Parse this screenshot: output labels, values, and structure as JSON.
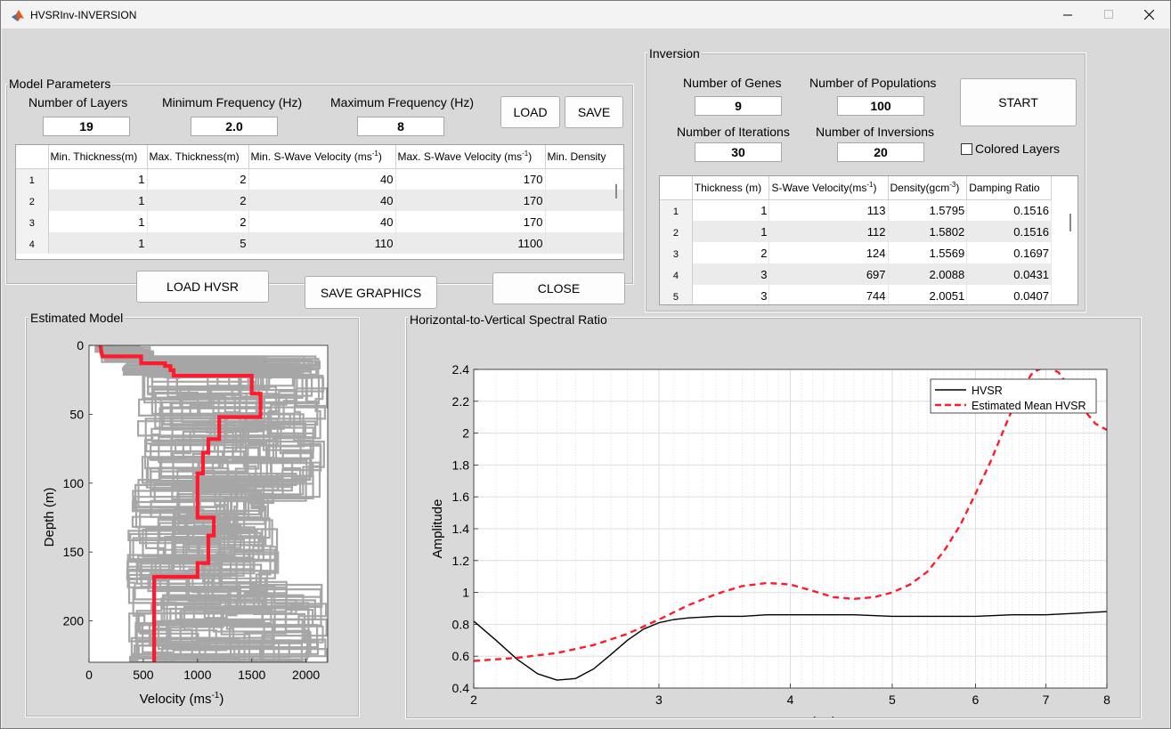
{
  "window": {
    "title": "HVSRInv-INVERSION"
  },
  "model_params": {
    "title": "Model Parameters",
    "layers_label": "Number of Layers",
    "layers_value": "19",
    "minf_label": "Minimum Frequency (Hz)",
    "minf_value": "2.0",
    "maxf_label": "Maximum Frequency (Hz)",
    "maxf_value": "8",
    "load_label": "LOAD",
    "save_label": "SAVE",
    "table": {
      "col1": "Min. Thickness(m)",
      "col2": "Max. Thickness(m)",
      "col3a": "Min. S-Wave Velocity (ms",
      "col3b": "-1",
      "col3c": ")",
      "col4a": "Max. S-Wave Velocity (ms",
      "col4b": "-1",
      "col4c": ")",
      "col5": "Min. Density",
      "rows": [
        {
          "n": "1",
          "a": "1",
          "b": "2",
          "c": "40",
          "d": "170"
        },
        {
          "n": "2",
          "a": "1",
          "b": "2",
          "c": "40",
          "d": "170"
        },
        {
          "n": "3",
          "a": "1",
          "b": "2",
          "c": "40",
          "d": "170"
        },
        {
          "n": "4",
          "a": "1",
          "b": "5",
          "c": "110",
          "d": "1100"
        }
      ]
    }
  },
  "buttons": {
    "load_hvsr": "LOAD HVSR",
    "save_graphics": "SAVE GRAPHICS",
    "close": "CLOSE",
    "start": "START"
  },
  "inversion": {
    "title": "Inversion",
    "genes_label": "Number of Genes",
    "genes_value": "9",
    "pops_label": "Number of Populations",
    "pops_value": "100",
    "iters_label": "Number of Iterations",
    "iters_value": "30",
    "invs_label": "Number of Inversions",
    "invs_value": "20",
    "colored_label": "Colored Layers",
    "table": {
      "col1": "Thickness (m)",
      "col2a": "S-Wave Velocity(ms",
      "col2b": "-1",
      "col2c": ")",
      "col3a": "Density(gcm",
      "col3b": "-3",
      "col3c": ")",
      "col4": "Damping Ratio",
      "rows": [
        {
          "n": "1",
          "a": "1",
          "b": "113",
          "c": "1.5795",
          "d": "0.1516"
        },
        {
          "n": "2",
          "a": "1",
          "b": "112",
          "c": "1.5802",
          "d": "0.1516"
        },
        {
          "n": "3",
          "a": "2",
          "b": "124",
          "c": "1.5569",
          "d": "0.1697"
        },
        {
          "n": "4",
          "a": "3",
          "b": "697",
          "c": "2.0088",
          "d": "0.0431"
        },
        {
          "n": "5",
          "a": "3",
          "b": "744",
          "c": "2.0051",
          "d": "0.0407"
        }
      ]
    }
  },
  "estimated_model": {
    "title": "Estimated Model",
    "xlabel_a": "Velocity (ms",
    "xlabel_b": "-1",
    "xlabel_c": ")",
    "ylabel": "Depth (m)",
    "xticks": [
      "0",
      "500",
      "1000",
      "1500",
      "2000"
    ],
    "yticks": [
      "0",
      "50",
      "100",
      "150",
      "200"
    ],
    "colors": {
      "trials": "#a6a6a6",
      "best": "#ff1a2e"
    }
  },
  "hvsr_panel": {
    "title": "Horizontal-to-Vertical Spectral Ratio"
  },
  "chart_data": [
    {
      "type": "line",
      "xlabel": "Frequency (Hz)",
      "ylabel": "Amplitude",
      "xscale": "log",
      "xlim": [
        2,
        8
      ],
      "ylim": [
        0.4,
        2.4
      ],
      "xticks": [
        "2",
        "3",
        "4",
        "5",
        "6",
        "7",
        "8"
      ],
      "yticks": [
        "0.4",
        "0.6",
        "0.8",
        "1",
        "1.2",
        "1.4",
        "1.6",
        "1.8",
        "2",
        "2.2",
        "2.4"
      ],
      "grid": true,
      "legend": "top-right",
      "series": [
        {
          "name": "HVSR",
          "color": "#000000",
          "style": "solid",
          "x": [
            2.0,
            2.1,
            2.2,
            2.3,
            2.4,
            2.5,
            2.6,
            2.7,
            2.8,
            2.9,
            3.0,
            3.1,
            3.2,
            3.4,
            3.6,
            3.8,
            4.0,
            4.3,
            4.6,
            5.0,
            5.5,
            6.0,
            6.5,
            7.0,
            7.5,
            8.0
          ],
          "y": [
            0.82,
            0.7,
            0.58,
            0.49,
            0.45,
            0.46,
            0.52,
            0.61,
            0.7,
            0.77,
            0.81,
            0.83,
            0.84,
            0.85,
            0.85,
            0.86,
            0.86,
            0.86,
            0.86,
            0.85,
            0.85,
            0.85,
            0.86,
            0.86,
            0.87,
            0.88
          ]
        },
        {
          "name": "Estimated Mean HVSR",
          "color": "#ff1a2e",
          "style": "dashed",
          "x": [
            2.0,
            2.2,
            2.4,
            2.6,
            2.8,
            3.0,
            3.2,
            3.4,
            3.6,
            3.8,
            4.0,
            4.2,
            4.4,
            4.6,
            4.8,
            5.0,
            5.2,
            5.4,
            5.6,
            5.8,
            6.0,
            6.2,
            6.4,
            6.6,
            6.8,
            7.0,
            7.2,
            7.4,
            7.6,
            7.8,
            8.0
          ],
          "y": [
            0.57,
            0.59,
            0.62,
            0.67,
            0.74,
            0.83,
            0.92,
            0.99,
            1.04,
            1.06,
            1.05,
            1.01,
            0.97,
            0.96,
            0.97,
            1.0,
            1.05,
            1.13,
            1.26,
            1.42,
            1.62,
            1.82,
            2.04,
            2.25,
            2.38,
            2.42,
            2.38,
            2.27,
            2.15,
            2.06,
            2.02
          ]
        }
      ]
    },
    {
      "type": "line",
      "xlabel": "Velocity (ms-1)",
      "ylabel": "Depth (m)",
      "xlim": [
        0,
        2200
      ],
      "ylim": [
        0,
        230
      ],
      "yreversed": true,
      "series": [
        {
          "name": "",
          "color": "#ff1a2e",
          "velocity": [
            100,
            110,
            112,
            124,
            480,
            480,
            700,
            700,
            750,
            750,
            780,
            780,
            1500,
            1500,
            1580,
            1580,
            1200,
            1200,
            1100,
            1100,
            1050,
            1050,
            1000,
            1000,
            1150,
            1150,
            1100,
            1100,
            1000,
            1000,
            600,
            600
          ],
          "depth": [
            0,
            2,
            4,
            8,
            8,
            13,
            13,
            15,
            15,
            18,
            18,
            22,
            22,
            35,
            35,
            52,
            52,
            68,
            68,
            78,
            78,
            93,
            93,
            125,
            125,
            138,
            138,
            158,
            158,
            168,
            168,
            230
          ]
        }
      ]
    }
  ]
}
